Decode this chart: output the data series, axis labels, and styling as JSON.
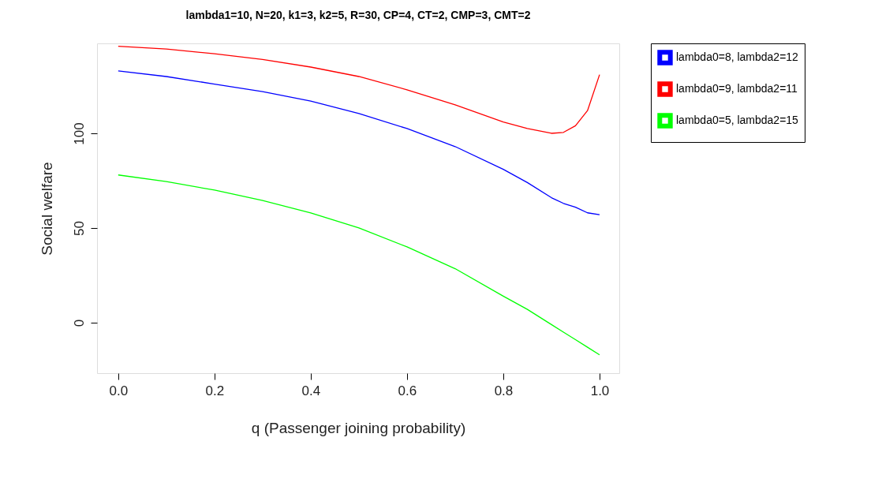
{
  "chart_data": {
    "type": "line",
    "title": "lambda1=10, N=20, k1=3, k2=5, R=30, CP=4, CT=2, CMP=3, CMT=2",
    "xlabel": "q (Passenger joining probability)",
    "ylabel": "Social welfare",
    "x": [
      0,
      0.1,
      0.2,
      0.3,
      0.4,
      0.5,
      0.6,
      0.7,
      0.8,
      0.85,
      0.9,
      0.925,
      0.95,
      0.975,
      1.0
    ],
    "series": [
      {
        "name": "lambda0=8, lambda2=12",
        "color": "#0000ff",
        "values": [
          133,
          130,
          126,
          122,
          117,
          110.5,
          102.5,
          93,
          81,
          74,
          66,
          63,
          61,
          58,
          57
        ]
      },
      {
        "name": "lambda0=9, lambda2=11",
        "color": "#ff0000",
        "values": [
          146,
          144.5,
          142,
          139,
          135,
          130,
          123,
          115,
          106,
          102.5,
          100,
          100.5,
          104,
          112,
          131
        ]
      },
      {
        "name": "lambda0=5, lambda2=15",
        "color": "#00ff00",
        "values": [
          78,
          74.5,
          70,
          64.5,
          58,
          50,
          40,
          28.5,
          14,
          7,
          -1,
          -5,
          -9,
          -13,
          -17
        ]
      }
    ],
    "xlim": [
      -0.044,
      1.041
    ],
    "ylim": [
      -26.7,
      147.5
    ],
    "xticks": [
      {
        "value": 0,
        "label": "0.0"
      },
      {
        "value": 0.2,
        "label": "0.2"
      },
      {
        "value": 0.4,
        "label": "0.4"
      },
      {
        "value": 0.6,
        "label": "0.6"
      },
      {
        "value": 0.8,
        "label": "0.8"
      },
      {
        "value": 1.0,
        "label": "1.0"
      }
    ],
    "yticks": [
      0,
      50,
      100
    ],
    "grid": false,
    "legend": "right",
    "line_style": "solid",
    "marker": "none"
  }
}
